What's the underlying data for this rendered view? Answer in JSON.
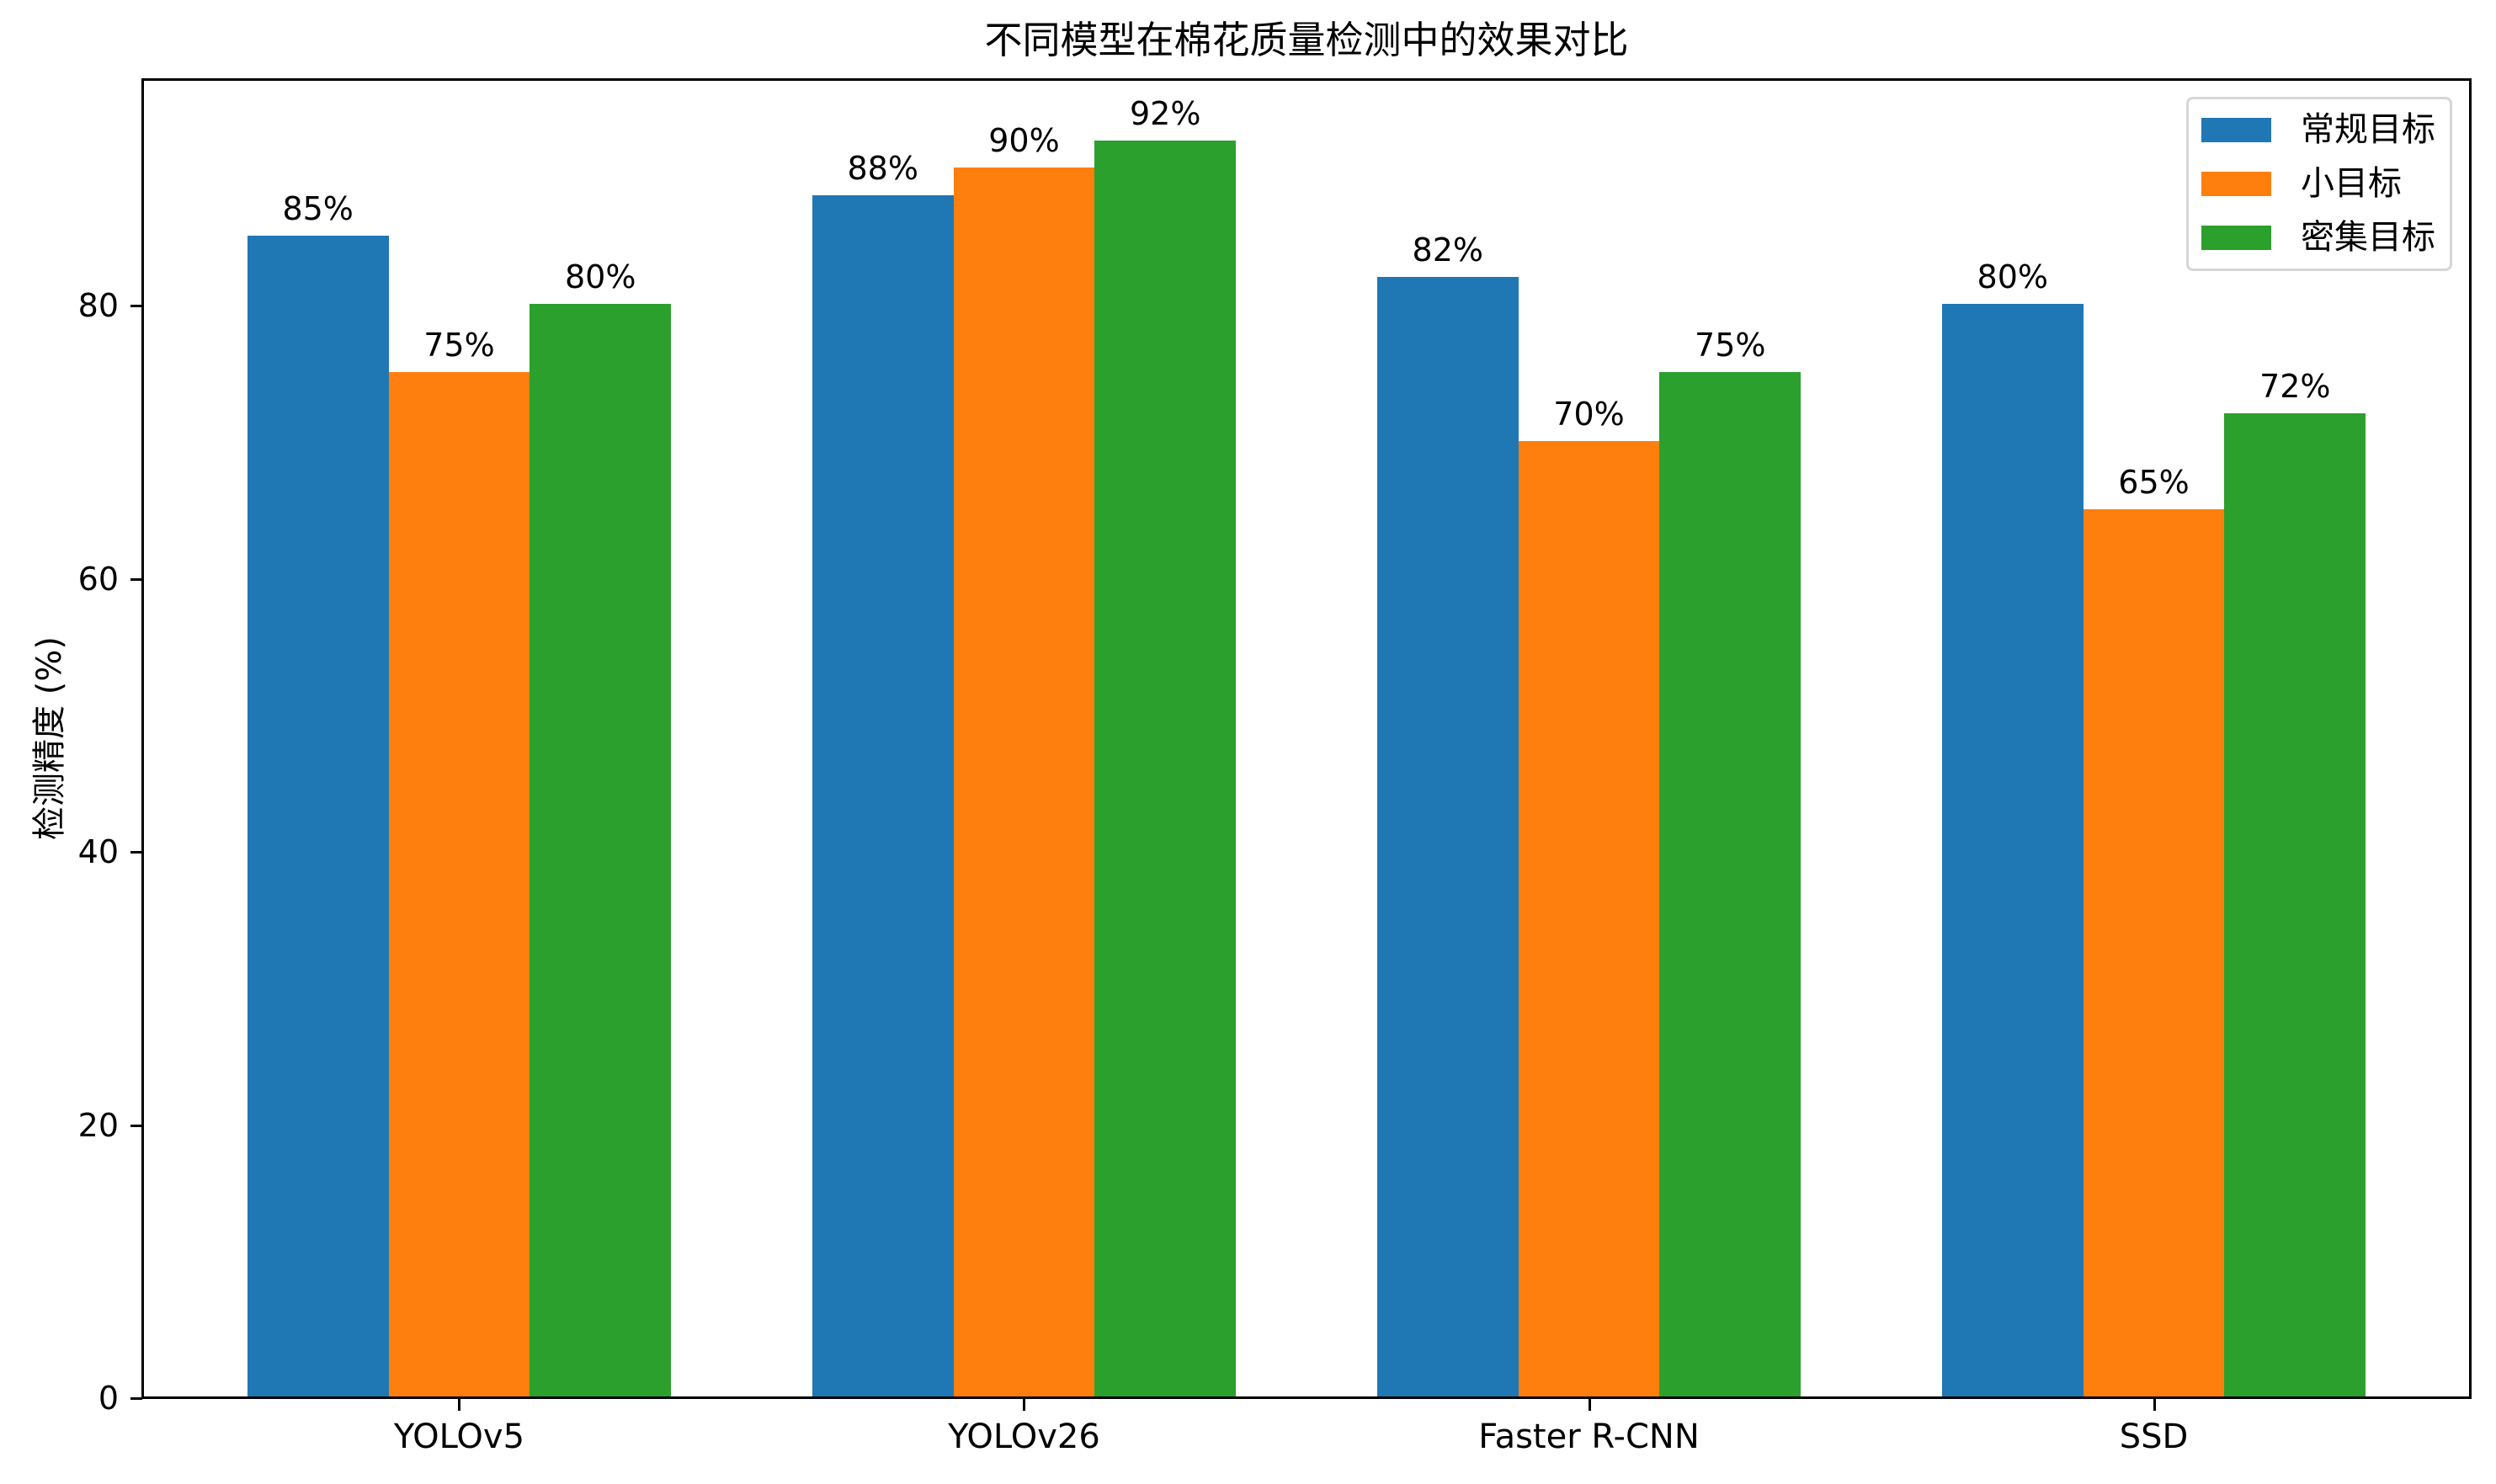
{
  "chart_data": {
    "type": "bar",
    "title": "不同模型在棉花质量检测中的效果对比",
    "xlabel": "",
    "ylabel": "检测精度 (%)",
    "categories": [
      "YOLOv5",
      "YOLOv26",
      "Faster R-CNN",
      "SSD"
    ],
    "series": [
      {
        "name": "常规目标",
        "color": "#1f77b4",
        "values": [
          85,
          88,
          82,
          80
        ]
      },
      {
        "name": "小目标",
        "color": "#ff7f0e",
        "values": [
          75,
          90,
          70,
          65
        ]
      },
      {
        "name": "密集目标",
        "color": "#2ca02c",
        "values": [
          80,
          92,
          75,
          72
        ]
      }
    ],
    "data_labels": [
      [
        "85%",
        "88%",
        "82%",
        "80%"
      ],
      [
        "75%",
        "90%",
        "70%",
        "65%"
      ],
      [
        "80%",
        "92%",
        "75%",
        "72%"
      ]
    ],
    "yticks": [
      0,
      20,
      40,
      60,
      80
    ],
    "ylim": [
      0,
      96.6
    ],
    "grid": false,
    "legend_position": "upper right"
  },
  "title": "不同模型在棉花质量检测中的效果对比",
  "ylabel": "检测精度 (%)",
  "legend": [
    {
      "label": "常规目标",
      "color": "#1f77b4"
    },
    {
      "label": "小目标",
      "color": "#ff7f0e"
    },
    {
      "label": "密集目标",
      "color": "#2ca02c"
    }
  ]
}
